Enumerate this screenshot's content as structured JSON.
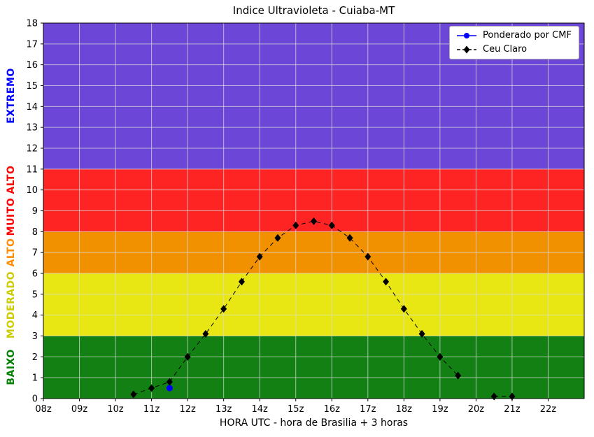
{
  "chart_data": {
    "type": "scatter",
    "title": "Indice Ultravioleta - Cuiaba-MT",
    "xlabel": "HORA UTC - hora de Brasilia + 3 horas",
    "ylabel": "",
    "xlim": [
      8,
      23
    ],
    "ylim": [
      0,
      18
    ],
    "x_tick_labels": [
      "08z",
      "09z",
      "10z",
      "11z",
      "12z",
      "13z",
      "14z",
      "15z",
      "16z",
      "17z",
      "18z",
      "19z",
      "20z",
      "21z",
      "22z"
    ],
    "y_tick_min": 0,
    "y_tick_max": 18,
    "y_tick_step": 1,
    "grid": true,
    "grid_color": "#d9d9d9",
    "legend_position": "upper right",
    "bands": [
      {
        "label": "BAIXO",
        "from": 0,
        "to": 3,
        "color": "#128012",
        "label_color": "#008000"
      },
      {
        "label": "MODERADO",
        "from": 3,
        "to": 6,
        "color": "#e8e713",
        "label_color": "#cccc00"
      },
      {
        "label": "ALTO",
        "from": 6,
        "to": 8,
        "color": "#f29100",
        "label_color": "#ff8c00"
      },
      {
        "label": "MUITO ALTO",
        "from": 8,
        "to": 11,
        "color": "#ff2424",
        "label_color": "#ff0000"
      },
      {
        "label": "EXTREMO",
        "from": 11,
        "to": 18,
        "color": "#6c46d6",
        "label_color": "#0000ff"
      }
    ],
    "series": [
      {
        "id": "ponderado-cmf",
        "name": "Ponderado por CMF",
        "color": "#0000ff",
        "marker": "circle",
        "line": "solid",
        "x": [
          11.5
        ],
        "y": [
          0.5
        ]
      },
      {
        "id": "ceu-claro",
        "name": "Ceu Claro",
        "color": "#000000",
        "marker": "diamond",
        "line": "dashed",
        "x": [
          10.5,
          11,
          11.5,
          12,
          12.5,
          13,
          13.5,
          14,
          14.5,
          15,
          15.5,
          16,
          16.5,
          17,
          17.5,
          18,
          18.5,
          19,
          19.5,
          20.5,
          21
        ],
        "y": [
          0.2,
          0.5,
          0.8,
          2.0,
          3.1,
          4.3,
          5.6,
          6.8,
          7.7,
          8.3,
          8.5,
          8.3,
          7.7,
          6.8,
          5.6,
          4.3,
          3.1,
          2.0,
          1.1,
          0.1,
          0.1
        ]
      }
    ]
  }
}
